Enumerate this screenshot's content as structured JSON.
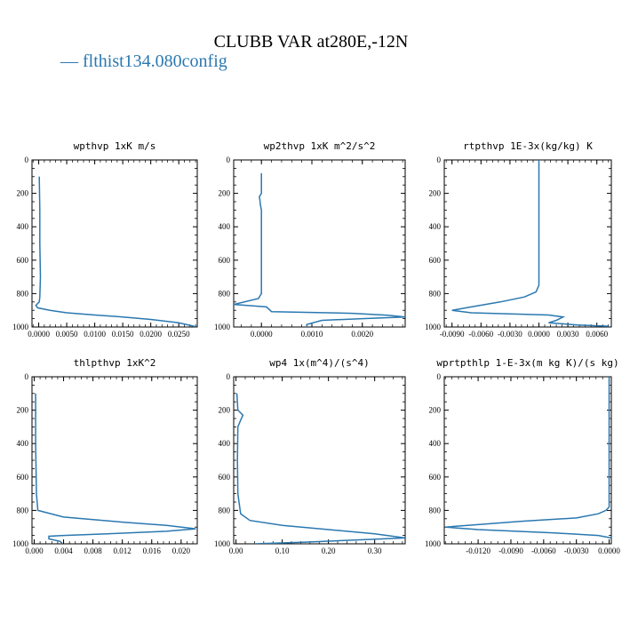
{
  "figure": {
    "title": "CLUBB VAR at280E,-12N",
    "legend_label": "— flthist134.080config",
    "series_color": "#2a78b0"
  },
  "chart_data": [
    {
      "type": "line",
      "title": "wpthvp   1xK m/s",
      "xlim": [
        -0.0012,
        0.0283
      ],
      "ylim": [
        1000,
        0
      ],
      "xticks": [
        0,
        0.005,
        0.01,
        0.015,
        0.02,
        0.025
      ],
      "xticklabels": [
        "0.0000",
        "0.0050",
        "0.0100",
        "0.0150",
        "0.0200",
        "0.0250"
      ],
      "yticks": [
        0,
        200,
        400,
        600,
        800,
        1000
      ],
      "points": [
        [
          0.0001,
          100
        ],
        [
          0.0002,
          300
        ],
        [
          0.0002,
          500
        ],
        [
          0.0003,
          700
        ],
        [
          0.0002,
          820
        ],
        [
          0.0001,
          850
        ],
        [
          -0.0005,
          870
        ],
        [
          -0.0002,
          885
        ],
        [
          0.002,
          900
        ],
        [
          0.005,
          915
        ],
        [
          0.01,
          928
        ],
        [
          0.015,
          940
        ],
        [
          0.02,
          955
        ],
        [
          0.025,
          975
        ],
        [
          0.028,
          998
        ]
      ]
    },
    {
      "type": "line",
      "title": "wp2thvp   1xK m^2/s^2",
      "xlim": [
        -0.00055,
        0.00285
      ],
      "ylim": [
        1000,
        0
      ],
      "xticks": [
        0,
        0.001,
        0.002
      ],
      "xticklabels": [
        "0.0000",
        "0.0010",
        "0.0020"
      ],
      "yticks": [
        0,
        200,
        400,
        600,
        800,
        1000
      ],
      "points": [
        [
          0,
          80
        ],
        [
          0,
          200
        ],
        [
          -4e-05,
          220
        ],
        [
          -3e-05,
          240
        ],
        [
          -2e-05,
          270
        ],
        [
          0,
          300
        ],
        [
          0,
          500
        ],
        [
          0,
          700
        ],
        [
          0,
          800
        ],
        [
          -6e-05,
          830
        ],
        [
          -0.00055,
          865
        ],
        [
          0.0001,
          880
        ],
        [
          0.0002,
          908
        ],
        [
          0.0018,
          918
        ],
        [
          0.0025,
          930
        ],
        [
          0.00285,
          940
        ],
        [
          0.002,
          950
        ],
        [
          0.0012,
          960
        ],
        [
          0.0009,
          985
        ],
        [
          0.0009,
          1000
        ]
      ]
    },
    {
      "type": "line",
      "title": "rtpthvp   1E-3x(kg/kg) K",
      "xlim": [
        -0.0098,
        0.0075
      ],
      "ylim": [
        1000,
        0
      ],
      "xticks": [
        -0.009,
        -0.006,
        -0.003,
        0,
        0.003,
        0.006
      ],
      "xticklabels": [
        "-0.0090",
        "-0.0060",
        "-0.0030",
        "0.0000",
        "0.0030",
        "0.0060"
      ],
      "yticks": [
        0,
        200,
        400,
        600,
        800,
        1000
      ],
      "points": [
        [
          0,
          0
        ],
        [
          0,
          300
        ],
        [
          0,
          600
        ],
        [
          0,
          750
        ],
        [
          -0.0003,
          790
        ],
        [
          -0.0015,
          820
        ],
        [
          -0.004,
          850
        ],
        [
          -0.007,
          880
        ],
        [
          -0.009,
          900
        ],
        [
          -0.007,
          915
        ],
        [
          0.001,
          928
        ],
        [
          0.0025,
          940
        ],
        [
          0.0018,
          960
        ],
        [
          0.001,
          975
        ],
        [
          0.004,
          988
        ],
        [
          0.0072,
          995
        ]
      ]
    },
    {
      "type": "line",
      "title": "thlpthvp   1xK^2",
      "xlim": [
        -0.0003,
        0.0222
      ],
      "ylim": [
        1000,
        0
      ],
      "xticks": [
        0,
        0.004,
        0.008,
        0.012,
        0.016,
        0.02
      ],
      "xticklabels": [
        "0.000",
        "0.004",
        "0.008",
        "0.012",
        "0.016",
        "0.020"
      ],
      "yticks": [
        0,
        200,
        400,
        600,
        800,
        1000
      ],
      "points": [
        [
          0.0002,
          100
        ],
        [
          0.0002,
          400
        ],
        [
          0.0003,
          700
        ],
        [
          0.0005,
          800
        ],
        [
          0.004,
          840
        ],
        [
          0.012,
          870
        ],
        [
          0.018,
          890
        ],
        [
          0.022,
          910
        ],
        [
          0.018,
          925
        ],
        [
          0.01,
          940
        ],
        [
          0.004,
          950
        ],
        [
          0.002,
          955
        ],
        [
          0.002,
          970
        ],
        [
          0.0035,
          985
        ],
        [
          0.0038,
          995
        ]
      ]
    },
    {
      "type": "line",
      "title": "wp4   1x(m^4)/(s^4)",
      "xlim": [
        -0.005,
        0.366
      ],
      "ylim": [
        1000,
        0
      ],
      "xticks": [
        0,
        0.1,
        0.2,
        0.3
      ],
      "xticklabels": [
        "0.00",
        "0.10",
        "0.20",
        "0.30"
      ],
      "yticks": [
        0,
        200,
        400,
        600,
        800,
        1000
      ],
      "points": [
        [
          0.002,
          100
        ],
        [
          0.004,
          200
        ],
        [
          0.015,
          230
        ],
        [
          0.01,
          260
        ],
        [
          0.004,
          300
        ],
        [
          0.003,
          500
        ],
        [
          0.004,
          700
        ],
        [
          0.01,
          820
        ],
        [
          0.03,
          860
        ],
        [
          0.1,
          890
        ],
        [
          0.2,
          915
        ],
        [
          0.3,
          940
        ],
        [
          0.366,
          965
        ],
        [
          0.28,
          975
        ],
        [
          0.15,
          990
        ],
        [
          0.04,
          1000
        ]
      ]
    },
    {
      "type": "line",
      "title": "wprtpthlp   1-E-3x(m kg K)/(s kg)",
      "xlim": [
        -0.0151,
        0.0002
      ],
      "ylim": [
        1000,
        0
      ],
      "xticks": [
        -0.012,
        -0.009,
        -0.006,
        -0.003,
        0
      ],
      "xticklabels": [
        "-0.0120",
        "-0.0090",
        "-0.0060",
        "-0.0030",
        "0.0000"
      ],
      "yticks": [
        0,
        200,
        400,
        600,
        800,
        1000
      ],
      "points": [
        [
          0,
          0
        ],
        [
          0,
          300
        ],
        [
          0,
          600
        ],
        [
          0,
          780
        ],
        [
          -0.0003,
          800
        ],
        [
          -0.001,
          820
        ],
        [
          -0.003,
          845
        ],
        [
          -0.008,
          865
        ],
        [
          -0.012,
          885
        ],
        [
          -0.015,
          900
        ],
        [
          -0.012,
          915
        ],
        [
          -0.005,
          935
        ],
        [
          -0.001,
          950
        ],
        [
          0.0002,
          965
        ]
      ]
    }
  ]
}
